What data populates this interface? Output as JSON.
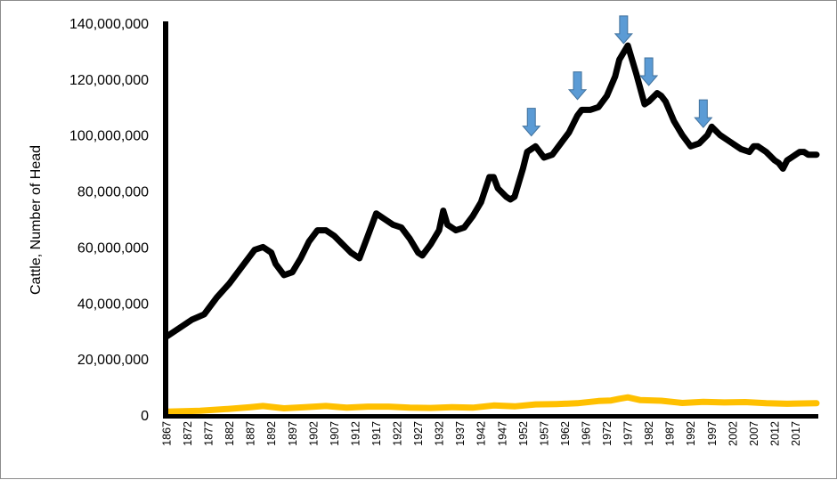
{
  "chart_data": {
    "type": "line",
    "ylabel": "Cattle, Number of Head",
    "xlabel": "",
    "ylim": [
      0,
      140000000
    ],
    "xlim": [
      1867,
      2022
    ],
    "y_ticks": [
      {
        "value": 0,
        "label": "0"
      },
      {
        "value": 20000000,
        "label": "20,000,000"
      },
      {
        "value": 40000000,
        "label": "40,000,000"
      },
      {
        "value": 60000000,
        "label": "60,000,000"
      },
      {
        "value": 80000000,
        "label": "80,000,000"
      },
      {
        "value": 100000000,
        "label": "100,000,000"
      },
      {
        "value": 120000000,
        "label": "120,000,000"
      },
      {
        "value": 140000000,
        "label": "140,000,000"
      }
    ],
    "x_ticks": [
      "1867",
      "1872",
      "1877",
      "1882",
      "1887",
      "1892",
      "1897",
      "1902",
      "1907",
      "1912",
      "1917",
      "1922",
      "1927",
      "1932",
      "1937",
      "1942",
      "1947",
      "1952",
      "1957",
      "1962",
      "1967",
      "1972",
      "1977",
      "1982",
      "1987",
      "1992",
      "1997",
      "2002",
      "2007",
      "2012",
      "2017"
    ],
    "grid": false,
    "legend": "none",
    "series": [
      {
        "color": "#000000",
        "x": [
          1867,
          1870,
          1873,
          1876,
          1879,
          1882,
          1885,
          1888,
          1890,
          1892,
          1893,
          1895,
          1897,
          1899,
          1901,
          1903,
          1905,
          1907,
          1909,
          1911,
          1913,
          1915,
          1917,
          1919,
          1921,
          1923,
          1925,
          1927,
          1928,
          1930,
          1932,
          1933,
          1934,
          1936,
          1938,
          1940,
          1942,
          1944,
          1945,
          1946,
          1948,
          1949,
          1950,
          1952,
          1953,
          1955,
          1957,
          1959,
          1961,
          1963,
          1965,
          1966,
          1968,
          1970,
          1972,
          1974,
          1975,
          1977,
          1978,
          1979,
          1981,
          1982,
          1984,
          1985,
          1986,
          1988,
          1990,
          1992,
          1994,
          1996,
          1997,
          1999,
          2001,
          2003,
          2004,
          2006,
          2007,
          2008,
          2010,
          2012,
          2013,
          2014,
          2015,
          2017,
          2018,
          2019,
          2020,
          2022
        ],
        "y": [
          28000000,
          31000000,
          34000000,
          36000000,
          42000000,
          47000000,
          53000000,
          59000000,
          60000000,
          58000000,
          54000000,
          50000000,
          51000000,
          56000000,
          62000000,
          66000000,
          66000000,
          64000000,
          61000000,
          58000000,
          56000000,
          64000000,
          72000000,
          70000000,
          68000000,
          67000000,
          63000000,
          58000000,
          57000000,
          61000000,
          66000000,
          73000000,
          68000000,
          66000000,
          67000000,
          71000000,
          76000000,
          85000000,
          85000000,
          81000000,
          78000000,
          77000000,
          78000000,
          88000000,
          94000000,
          96000000,
          92000000,
          93000000,
          97000000,
          101000000,
          107000000,
          109000000,
          109000000,
          110000000,
          114000000,
          121000000,
          127000000,
          132000000,
          127000000,
          122000000,
          111000000,
          112000000,
          115000000,
          114000000,
          112000000,
          105000000,
          100000000,
          96000000,
          97000000,
          100000000,
          103000000,
          100000000,
          98000000,
          96000000,
          95000000,
          94000000,
          96000000,
          96000000,
          94000000,
          91000000,
          90000000,
          88000000,
          91000000,
          93000000,
          94000000,
          94000000,
          93000000,
          93000000
        ]
      },
      {
        "color": "#FFC000",
        "x": [
          1867,
          1875,
          1882,
          1887,
          1890,
          1895,
          1900,
          1905,
          1910,
          1915,
          1920,
          1925,
          1930,
          1935,
          1940,
          1945,
          1950,
          1955,
          1960,
          1965,
          1970,
          1973,
          1975,
          1977,
          1980,
          1985,
          1990,
          1995,
          2000,
          2005,
          2010,
          2015,
          2022
        ],
        "y": [
          1200000,
          1500000,
          2200000,
          2800000,
          3200000,
          2400000,
          2800000,
          3200000,
          2600000,
          3000000,
          3000000,
          2600000,
          2500000,
          2800000,
          2600000,
          3400000,
          3100000,
          3800000,
          3900000,
          4200000,
          5000000,
          5200000,
          5800000,
          6300000,
          5300000,
          5100000,
          4300000,
          4700000,
          4500000,
          4600000,
          4200000,
          4000000,
          4200000
        ]
      }
    ],
    "annotations": {
      "arrow_years": [
        1954,
        1965,
        1976,
        1982,
        1995
      ],
      "arrow_color": "#5B9BD5"
    }
  }
}
